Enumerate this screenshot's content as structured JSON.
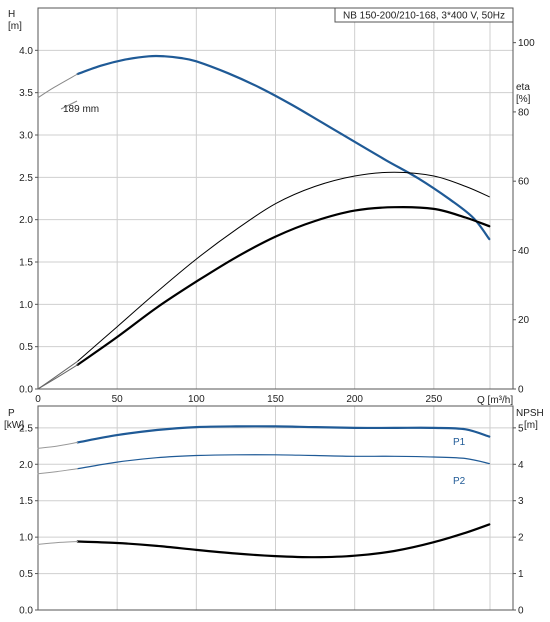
{
  "chart_data": [
    {
      "type": "line",
      "name": "upper-pump-curve",
      "title": "NB 150-200/210-168, 3*400 V, 50Hz",
      "xlabel": "Q [m³/h]",
      "ylabel_left": [
        "H",
        "[m]"
      ],
      "ylabel_right": [
        "eta",
        "[%]"
      ],
      "xlim": [
        0,
        300
      ],
      "ylim_left": [
        0,
        4.5
      ],
      "ylim_right": [
        0,
        110
      ],
      "x_ticks": [
        "0",
        "50",
        "100",
        "150",
        "200",
        "250"
      ],
      "x_tick_values": [
        0,
        50,
        100,
        150,
        200,
        250
      ],
      "y_left_ticks": [
        "0.0",
        "0.5",
        "1.0",
        "1.5",
        "2.0",
        "2.5",
        "3.0",
        "3.5",
        "4.0"
      ],
      "y_left_tick_values": [
        0,
        0.5,
        1.0,
        1.5,
        2.0,
        2.5,
        3.0,
        3.5,
        4.0
      ],
      "y_right_ticks": [
        "0",
        "20",
        "40",
        "60",
        "80",
        "100"
      ],
      "y_right_tick_values": [
        0,
        20,
        40,
        60,
        80,
        100
      ],
      "grid": true,
      "annotations": [
        {
          "text": "189 mm",
          "x": 16,
          "y": 3.66,
          "axis": "left"
        }
      ],
      "series": [
        {
          "key": "H",
          "axis": "left",
          "color": "#1f5a96",
          "width": 2.2,
          "dashed": false,
          "x": [
            25,
            40,
            55,
            70,
            80,
            90,
            100,
            120,
            140,
            160,
            180,
            200,
            220,
            240,
            260,
            275,
            285
          ],
          "y": [
            3.72,
            3.82,
            3.89,
            3.93,
            3.93,
            3.91,
            3.87,
            3.73,
            3.56,
            3.36,
            3.14,
            2.92,
            2.7,
            2.49,
            2.24,
            2.02,
            1.77
          ]
        },
        {
          "key": "H-extension",
          "axis": "left",
          "color": "#888888",
          "width": 1,
          "dashed": false,
          "x": [
            0,
            10,
            25
          ],
          "y": [
            3.44,
            3.56,
            3.72
          ]
        },
        {
          "key": "eta-thin",
          "axis": "right",
          "color": "#000000",
          "width": 1,
          "dashed": false,
          "x": [
            25,
            50,
            75,
            100,
            125,
            150,
            175,
            200,
            225,
            250,
            270,
            285
          ],
          "y": [
            8,
            18,
            28,
            37.5,
            46,
            53.5,
            58.5,
            61.5,
            62.6,
            61.5,
            58.5,
            55.5
          ]
        },
        {
          "key": "eta-thick",
          "axis": "right",
          "color": "#000000",
          "width": 2.2,
          "dashed": false,
          "x": [
            25,
            50,
            75,
            100,
            125,
            150,
            175,
            200,
            225,
            250,
            270,
            285
          ],
          "y": [
            7,
            15,
            23.5,
            31,
            38,
            44,
            48.5,
            51.5,
            52.5,
            52,
            49.5,
            47
          ]
        },
        {
          "key": "eta-thin-extension",
          "axis": "right",
          "color": "#666666",
          "width": 1,
          "dashed": false,
          "x": [
            0,
            12,
            25
          ],
          "y": [
            0,
            3.8,
            8
          ]
        },
        {
          "key": "eta-thick-extension",
          "axis": "right",
          "color": "#666666",
          "width": 1,
          "dashed": false,
          "x": [
            0,
            12,
            25
          ],
          "y": [
            0,
            3.3,
            7
          ]
        }
      ]
    },
    {
      "type": "line",
      "name": "lower-power-npsh-curve",
      "ylabel_left": [
        "P",
        "[kW]"
      ],
      "ylabel_right": [
        "NPSH",
        "[m]"
      ],
      "xlim": [
        0,
        300
      ],
      "ylim_left": [
        0,
        2.8
      ],
      "ylim_right": [
        0,
        5.6
      ],
      "x_tick_values": [
        0,
        50,
        100,
        150,
        200,
        250
      ],
      "y_left_ticks": [
        "0.0",
        "0.5",
        "1.0",
        "1.5",
        "2.0",
        "2.5"
      ],
      "y_left_tick_values": [
        0,
        0.5,
        1.0,
        1.5,
        2.0,
        2.5
      ],
      "y_right_ticks": [
        "0",
        "1",
        "2",
        "3",
        "4",
        "5"
      ],
      "y_right_tick_values": [
        0,
        1,
        2,
        3,
        4,
        5
      ],
      "grid": true,
      "series": [
        {
          "key": "P1",
          "name": "P1",
          "axis": "left",
          "color": "#1f5a96",
          "width": 2.2,
          "dashed": false,
          "x": [
            25,
            50,
            75,
            100,
            125,
            150,
            175,
            200,
            225,
            250,
            270,
            285
          ],
          "y": [
            2.3,
            2.4,
            2.47,
            2.51,
            2.52,
            2.52,
            2.51,
            2.5,
            2.5,
            2.5,
            2.48,
            2.38
          ]
        },
        {
          "key": "P2",
          "name": "P2",
          "axis": "left",
          "color": "#1f5a96",
          "width": 1.2,
          "dashed": false,
          "x": [
            25,
            50,
            75,
            100,
            125,
            150,
            175,
            200,
            225,
            250,
            270,
            285
          ],
          "y": [
            1.94,
            2.03,
            2.09,
            2.12,
            2.13,
            2.13,
            2.12,
            2.11,
            2.11,
            2.1,
            2.08,
            2.01
          ]
        },
        {
          "key": "P1-extension",
          "axis": "left",
          "color": "#999999",
          "width": 1,
          "dashed": false,
          "x": [
            0,
            12,
            25
          ],
          "y": [
            2.22,
            2.25,
            2.3
          ]
        },
        {
          "key": "P2-extension",
          "axis": "left",
          "color": "#999999",
          "width": 1,
          "dashed": false,
          "x": [
            0,
            12,
            25
          ],
          "y": [
            1.87,
            1.9,
            1.94
          ]
        },
        {
          "key": "NPSH",
          "axis": "right",
          "color": "#000000",
          "width": 2.2,
          "dashed": false,
          "x": [
            25,
            50,
            75,
            100,
            125,
            150,
            175,
            200,
            225,
            250,
            270,
            285
          ],
          "y": [
            1.88,
            1.84,
            1.76,
            1.65,
            1.55,
            1.48,
            1.45,
            1.49,
            1.62,
            1.86,
            2.12,
            2.35
          ]
        },
        {
          "key": "NPSH-extension",
          "axis": "right",
          "color": "#999999",
          "width": 1,
          "dashed": false,
          "x": [
            0,
            12,
            25
          ],
          "y": [
            1.8,
            1.85,
            1.88
          ]
        }
      ],
      "labels": [
        {
          "text": "P1",
          "x": 286,
          "y": 2.48,
          "color": "#1f5a96"
        },
        {
          "text": "P2",
          "x": 286,
          "y": 1.92,
          "color": "#1f5a96"
        }
      ]
    }
  ]
}
